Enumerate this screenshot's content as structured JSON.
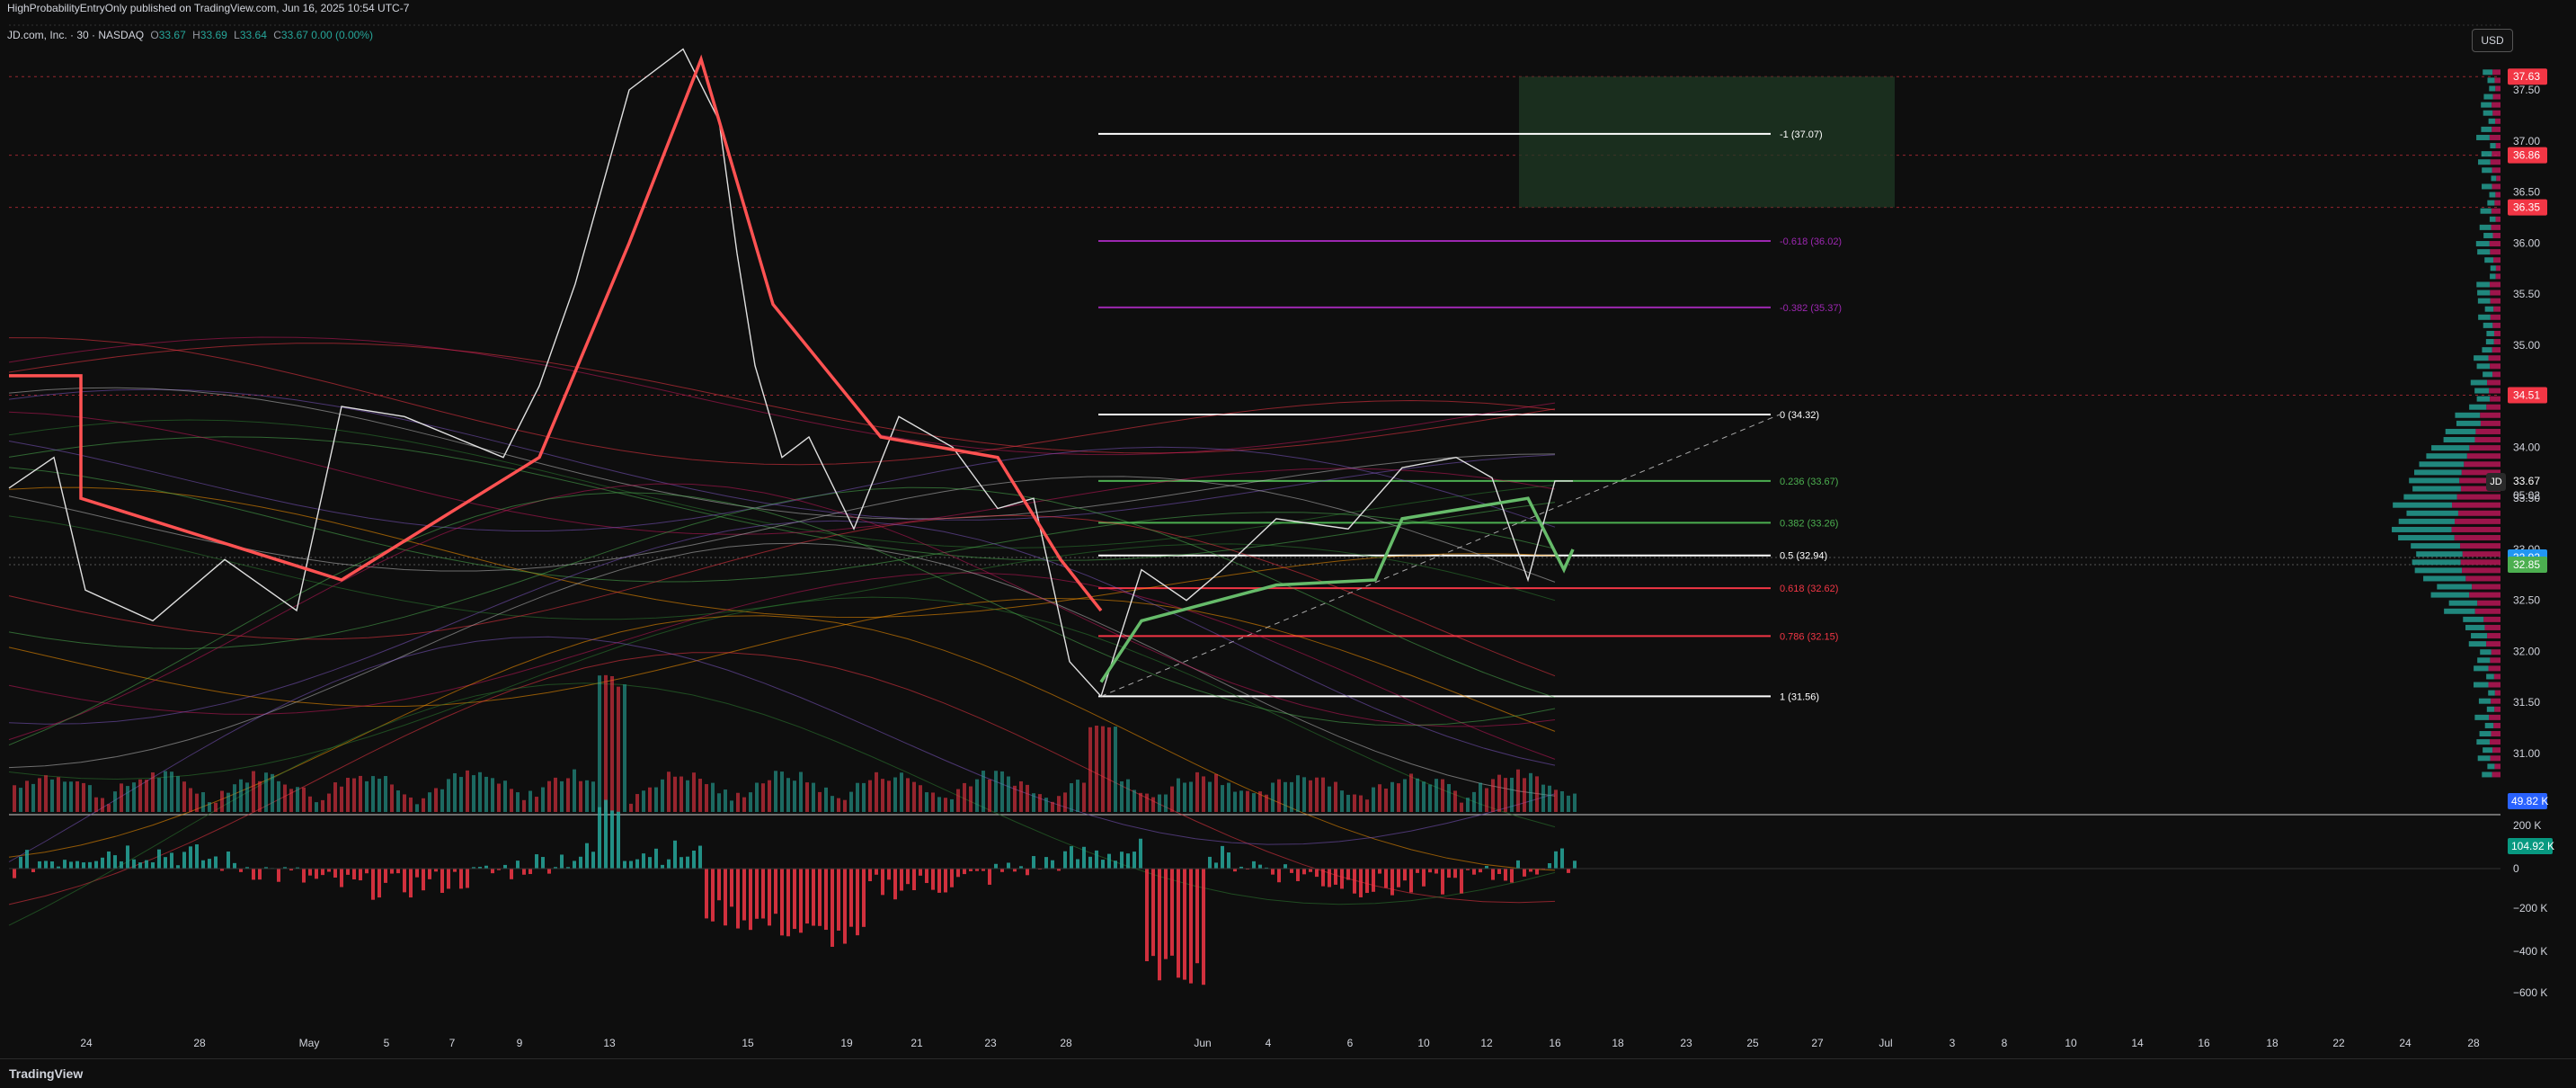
{
  "header": {
    "publisher": "HighProbabilityEntryOnly published on TradingView.com, Jun 16, 2025 10:54 UTC-7"
  },
  "legend": {
    "symbol": "JD.com, Inc. · 30 · NASDAQ",
    "open_label": "O",
    "open": "33.67",
    "high_label": "H",
    "high": "33.69",
    "low_label": "L",
    "low": "33.64",
    "close_label": "C",
    "close": "33.67",
    "change": "0.00 (0.00%)"
  },
  "currency_button": "USD",
  "ticker_tag": "JD",
  "price_axis": {
    "ticks": [
      "37.50",
      "37.00",
      "36.50",
      "36.00",
      "35.50",
      "35.00",
      "34.50",
      "34.00",
      "33.50",
      "33.00",
      "32.50",
      "32.00",
      "31.50",
      "31.00"
    ],
    "badges": [
      {
        "text": "37.63",
        "color": "#f23645"
      },
      {
        "text": "36.86",
        "color": "#f23645"
      },
      {
        "text": "36.35",
        "color": "#f23645"
      },
      {
        "text": "34.51",
        "color": "#f23645"
      },
      {
        "text": "32.92",
        "color": "#2196f3"
      },
      {
        "text": "32.85",
        "color": "#4caf50"
      }
    ],
    "last_price": "33.67",
    "countdown": "05:02",
    "volume_badge": "49.82 K"
  },
  "osc_axis": {
    "ticks": [
      "200 K",
      "0",
      "−200 K",
      "−400 K",
      "−600 K"
    ],
    "badge": "104.92 K"
  },
  "time_axis": [
    "24",
    "28",
    "May",
    "5",
    "7",
    "9",
    "13",
    "15",
    "19",
    "21",
    "23",
    "28",
    "Jun",
    "4",
    "6",
    "10",
    "12",
    "16",
    "18",
    "23",
    "25",
    "27",
    "Jul",
    "3",
    "8",
    "10",
    "14",
    "16",
    "18",
    "22",
    "24",
    "28"
  ],
  "fib_levels": [
    {
      "label": "-1 (37.07)",
      "color": "#ffffff",
      "price": 37.07
    },
    {
      "label": "-0.618 (36.02)",
      "color": "#9c27b0",
      "price": 36.02
    },
    {
      "label": "-0.382 (35.37)",
      "color": "#9c27b0",
      "price": 35.37
    },
    {
      "label": "0 (34.32)",
      "color": "#ffffff",
      "price": 34.32
    },
    {
      "label": "0.236 (33.67)",
      "color": "#4caf50",
      "price": 33.67
    },
    {
      "label": "0.382 (33.26)",
      "color": "#4caf50",
      "price": 33.26
    },
    {
      "label": "0.5 (32.94)",
      "color": "#ffffff",
      "price": 32.94
    },
    {
      "label": "0.618 (32.62)",
      "color": "#f23645",
      "price": 32.62
    },
    {
      "label": "0.786 (32.15)",
      "color": "#f23645",
      "price": 32.15
    },
    {
      "label": "1 (31.56)",
      "color": "#ffffff",
      "price": 31.56
    }
  ],
  "footer": {
    "brand": "TradingView"
  },
  "colors": {
    "up": "#26a69a",
    "down": "#f23645",
    "bg": "#0e0e0e",
    "grid": "#1c1c1c"
  }
}
